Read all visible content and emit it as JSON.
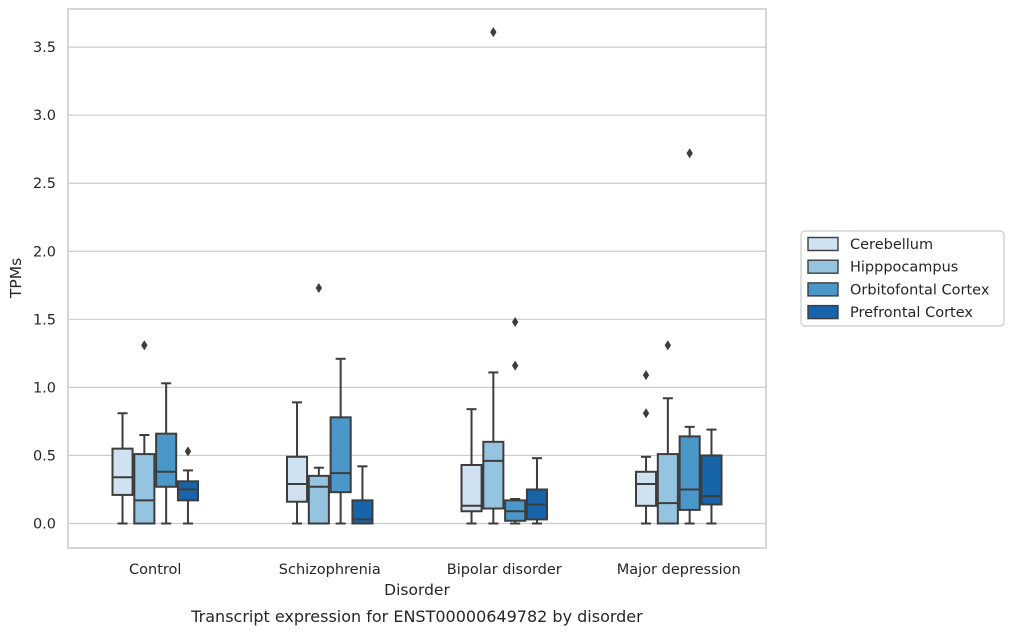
{
  "caption": "Transcript expression for ENST00000649782 by disorder",
  "chart_data": {
    "type": "box",
    "xlabel": "Disorder",
    "ylabel": "TPMs",
    "ylim": [
      -0.18,
      3.78
    ],
    "yticks": [
      "0.0",
      "0.5",
      "1.0",
      "1.5",
      "2.0",
      "2.5",
      "3.0",
      "3.5"
    ],
    "grid": "horizontal",
    "legend_position": "right",
    "categories": [
      "Control",
      "Schizophrenia",
      "Bipolar disorder",
      "Major depression"
    ],
    "series": [
      {
        "name": "Cerebellum",
        "color": "#d0e1f2",
        "boxes": [
          {
            "whislo": 0.0,
            "q1": 0.21,
            "med": 0.34,
            "q3": 0.55,
            "whishi": 0.81,
            "fliers": []
          },
          {
            "whislo": 0.0,
            "q1": 0.16,
            "med": 0.29,
            "q3": 0.49,
            "whishi": 0.89,
            "fliers": []
          },
          {
            "whislo": 0.0,
            "q1": 0.09,
            "med": 0.13,
            "q3": 0.43,
            "whishi": 0.84,
            "fliers": []
          },
          {
            "whislo": 0.0,
            "q1": 0.13,
            "med": 0.29,
            "q3": 0.38,
            "whishi": 0.49,
            "fliers": [
              0.81,
              1.09
            ]
          }
        ]
      },
      {
        "name": "Hipppocampus",
        "color": "#94c4df",
        "boxes": [
          {
            "whislo": 0.0,
            "q1": 0.0,
            "med": 0.17,
            "q3": 0.51,
            "whishi": 0.65,
            "fliers": [
              1.31
            ]
          },
          {
            "whislo": 0.0,
            "q1": 0.0,
            "med": 0.27,
            "q3": 0.35,
            "whishi": 0.41,
            "fliers": [
              1.73
            ]
          },
          {
            "whislo": 0.0,
            "q1": 0.11,
            "med": 0.46,
            "q3": 0.6,
            "whishi": 1.11,
            "fliers": [
              3.61
            ]
          },
          {
            "whislo": 0.0,
            "q1": 0.0,
            "med": 0.15,
            "q3": 0.51,
            "whishi": 0.92,
            "fliers": [
              1.31
            ]
          }
        ]
      },
      {
        "name": "Orbitofontal Cortex",
        "color": "#4a98c9",
        "boxes": [
          {
            "whislo": 0.0,
            "q1": 0.27,
            "med": 0.38,
            "q3": 0.66,
            "whishi": 1.03,
            "fliers": []
          },
          {
            "whislo": 0.0,
            "q1": 0.23,
            "med": 0.37,
            "q3": 0.78,
            "whishi": 1.21,
            "fliers": []
          },
          {
            "whislo": 0.0,
            "q1": 0.02,
            "med": 0.09,
            "q3": 0.17,
            "whishi": 0.18,
            "fliers": [
              1.16,
              1.48
            ]
          },
          {
            "whislo": 0.0,
            "q1": 0.1,
            "med": 0.25,
            "q3": 0.64,
            "whishi": 0.71,
            "fliers": [
              2.72
            ]
          }
        ]
      },
      {
        "name": "Prefrontal Cortex",
        "color": "#1764ab",
        "boxes": [
          {
            "whislo": 0.0,
            "q1": 0.17,
            "med": 0.25,
            "q3": 0.31,
            "whishi": 0.39,
            "fliers": [
              0.53
            ]
          },
          {
            "whislo": 0.0,
            "q1": 0.0,
            "med": 0.03,
            "q3": 0.17,
            "whishi": 0.42,
            "fliers": []
          },
          {
            "whislo": 0.0,
            "q1": 0.03,
            "med": 0.14,
            "q3": 0.25,
            "whishi": 0.48,
            "fliers": []
          },
          {
            "whislo": 0.0,
            "q1": 0.14,
            "med": 0.2,
            "q3": 0.5,
            "whishi": 0.69,
            "fliers": []
          }
        ]
      }
    ]
  }
}
